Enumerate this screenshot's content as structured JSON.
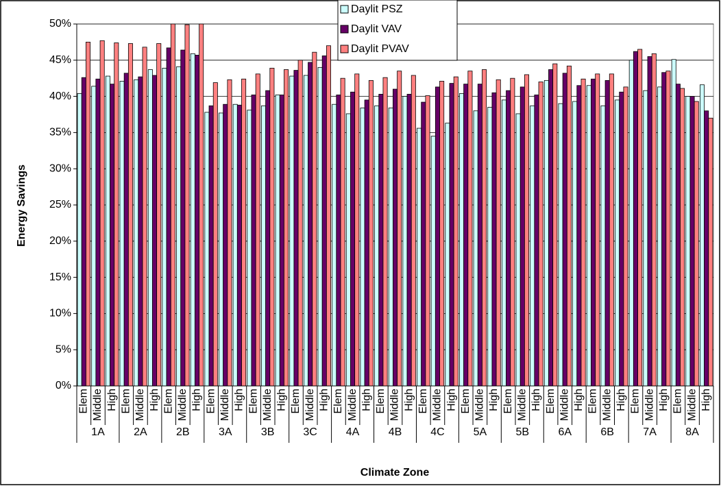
{
  "chart_data": {
    "type": "bar",
    "y_label": "Energy Savings",
    "x_label": "Climate Zone",
    "categories": [
      "Elem",
      "Middle",
      "High",
      "Elem",
      "Middle",
      "High",
      "Elem",
      "Middle",
      "High",
      "Elem",
      "Middle",
      "High",
      "Elem",
      "Middle",
      "High",
      "Elem",
      "Middle",
      "High",
      "Elem",
      "Middle",
      "High",
      "Elem",
      "Middle",
      "High",
      "Elem",
      "Middle",
      "High",
      "Elem",
      "Middle",
      "High",
      "Elem",
      "Middle",
      "High",
      "Elem",
      "Middle",
      "High",
      "Elem",
      "Middle",
      "High",
      "Elem",
      "Middle",
      "High",
      "Elem",
      "Middle",
      "High"
    ],
    "groups": [
      "1A",
      "2A",
      "2B",
      "3A",
      "3B",
      "3C",
      "4A",
      "4B",
      "4C",
      "5A",
      "5B",
      "6A",
      "6B",
      "7A",
      "8A"
    ],
    "series": [
      {
        "name": "Daylit PSZ",
        "color": "#ccffff",
        "values": [
          40.4,
          41.4,
          42.8,
          42.1,
          42.3,
          43.7,
          43.9,
          44.1,
          45.9,
          37.8,
          37.7,
          38.9,
          38.1,
          38.7,
          40.2,
          42.8,
          42.9,
          44.0,
          38.9,
          37.6,
          38.4,
          38.7,
          38.4,
          40.0,
          35.6,
          34.5,
          36.3,
          40.4,
          38.0,
          38.5,
          39.5,
          37.6,
          38.7,
          42.2,
          39.0,
          39.3,
          41.5,
          38.7,
          39.5,
          45.0,
          40.8,
          41.3,
          45.1,
          40.0,
          41.6
        ]
      },
      {
        "name": "Daylit VAV",
        "color": "#660066",
        "values": [
          42.6,
          42.4,
          41.7,
          43.2,
          42.7,
          42.9,
          46.7,
          46.4,
          45.7,
          38.7,
          38.9,
          38.8,
          40.2,
          40.8,
          40.2,
          43.6,
          44.7,
          45.6,
          40.2,
          40.6,
          39.5,
          40.3,
          41.0,
          40.3,
          39.2,
          41.3,
          41.8,
          41.7,
          41.7,
          40.5,
          40.8,
          41.3,
          40.2,
          43.7,
          43.2,
          41.5,
          42.4,
          42.2,
          40.6,
          46.2,
          45.5,
          43.3,
          41.7,
          40.0,
          38.0
        ]
      },
      {
        "name": "Daylit PVAV",
        "color": "#ff8080",
        "values": [
          47.5,
          47.7,
          47.4,
          47.3,
          46.8,
          47.3,
          50.0,
          49.9,
          50.0,
          41.9,
          42.3,
          42.4,
          43.1,
          43.9,
          43.7,
          45.0,
          46.1,
          47.0,
          42.5,
          43.1,
          42.2,
          42.6,
          43.5,
          42.9,
          40.1,
          42.1,
          42.7,
          43.5,
          43.7,
          42.3,
          42.5,
          43.0,
          42.0,
          44.5,
          44.2,
          42.4,
          43.1,
          43.1,
          41.3,
          46.5,
          45.9,
          43.5,
          41.1,
          39.3,
          37.0
        ]
      }
    ],
    "ylim": [
      0,
      50
    ],
    "yticks": [
      {
        "value": 0,
        "label": "0%"
      },
      {
        "value": 5,
        "label": "5%"
      },
      {
        "value": 10,
        "label": "10%"
      },
      {
        "value": 15,
        "label": "15%"
      },
      {
        "value": 20,
        "label": "20%"
      },
      {
        "value": 25,
        "label": "25%"
      },
      {
        "value": 30,
        "label": "30%"
      },
      {
        "value": 35,
        "label": "35%"
      },
      {
        "value": 40,
        "label": "40%"
      },
      {
        "value": 45,
        "label": "45%"
      },
      {
        "value": 50,
        "label": "50%"
      }
    ],
    "grid": true,
    "legend": "top"
  }
}
